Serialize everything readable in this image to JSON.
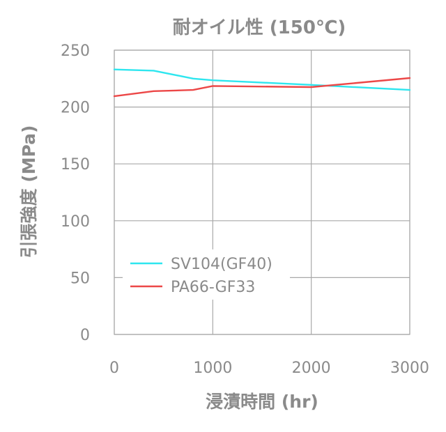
{
  "colors": {
    "text": "#8a8a8a",
    "grid": "#a8a8a8",
    "background": "#ffffff"
  },
  "chart_data": {
    "type": "line",
    "title": "耐オイル性 (150℃)",
    "xlabel": "浸漬時間 (hr)",
    "ylabel": "引張強度 (MPa)",
    "xlim": [
      0,
      3000
    ],
    "ylim": [
      0,
      250
    ],
    "xticks": [
      "0",
      "1000",
      "2000",
      "3000"
    ],
    "yticks": [
      "0",
      "50",
      "100",
      "150",
      "200",
      "250"
    ],
    "grid": true,
    "legend_position": "center-left",
    "series": [
      {
        "name": "SV104(GF40)",
        "color": "#2ee6ef",
        "x": [
          0,
          400,
          800,
          1000,
          2000,
          3000
        ],
        "y": [
          233,
          232,
          225,
          223.5,
          219.5,
          215
        ]
      },
      {
        "name": "PA66-GF33",
        "color": "#ec4747",
        "x": [
          0,
          400,
          800,
          1000,
          2000,
          3000
        ],
        "y": [
          209.5,
          214,
          215,
          218.5,
          217.5,
          225.5
        ]
      }
    ]
  }
}
